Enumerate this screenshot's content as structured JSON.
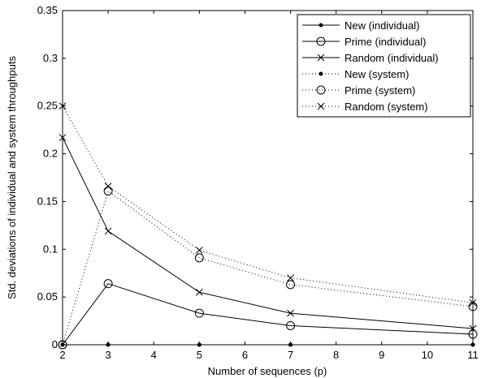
{
  "chart_data": {
    "type": "line",
    "title": "",
    "xlabel": "Number of sequences (p)",
    "ylabel": "Std. deviations of individual and system throughputs",
    "xlim": [
      2,
      11
    ],
    "ylim": [
      0,
      0.35
    ],
    "xticks": [
      2,
      3,
      4,
      5,
      6,
      7,
      8,
      9,
      10,
      11
    ],
    "yticks": [
      0,
      0.05,
      0.1,
      0.15,
      0.2,
      0.25,
      0.3,
      0.35
    ],
    "ytick_labels": [
      "0",
      "0.05",
      "0.1",
      "0.15",
      "0.2",
      "0.25",
      "0.3",
      "0.35"
    ],
    "x": [
      2,
      3,
      5,
      7,
      11
    ],
    "grid": false,
    "legend_position": "top-right",
    "series": [
      {
        "name": "New (individual)",
        "values": [
          0,
          0,
          0,
          0,
          0
        ],
        "marker": "dot",
        "line": "solid"
      },
      {
        "name": "Prime (individual)",
        "values": [
          0,
          0.064,
          0.033,
          0.02,
          0.011
        ],
        "marker": "circle",
        "line": "solid"
      },
      {
        "name": "Random (individual)",
        "values": [
          0.217,
          0.119,
          0.055,
          0.033,
          0.017
        ],
        "marker": "x",
        "line": "solid"
      },
      {
        "name": "New (system)",
        "values": [
          0,
          0,
          0,
          0,
          0
        ],
        "marker": "dot",
        "line": "dotted"
      },
      {
        "name": "Prime (system)",
        "values": [
          0,
          0.161,
          0.091,
          0.063,
          0.04
        ],
        "marker": "circle",
        "line": "dotted"
      },
      {
        "name": "Random (system)",
        "values": [
          0.25,
          0.166,
          0.099,
          0.07,
          0.044
        ],
        "marker": "x",
        "line": "dotted"
      }
    ]
  }
}
